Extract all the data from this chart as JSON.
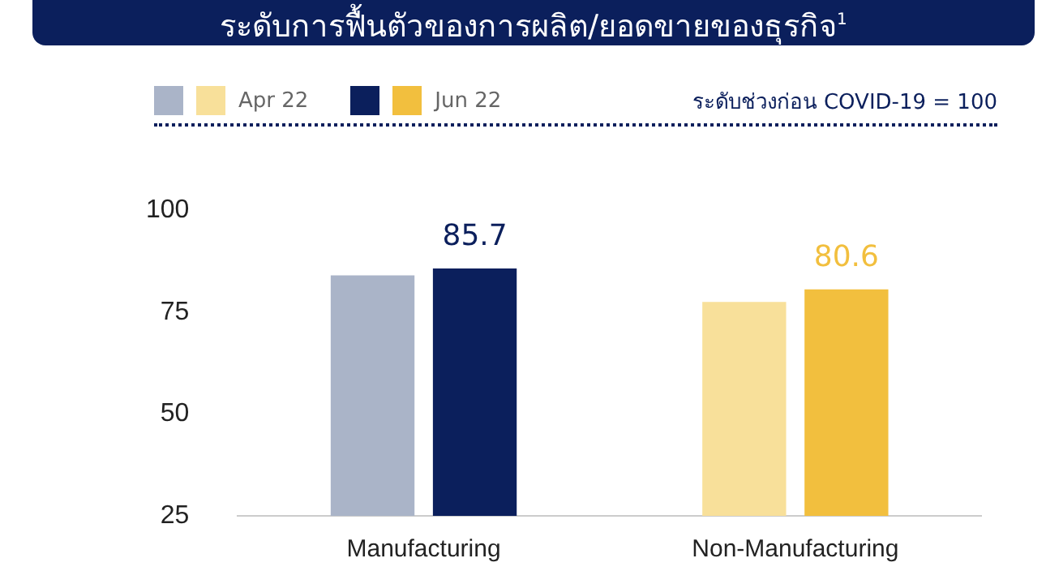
{
  "chart_data": {
    "type": "bar",
    "title": "ระดับการฟื้นตัวของการผลิต/ยอดขายของธุรกิจ$^{1}$",
    "categories": [
      "Manufacturing",
      "Non-Manufacturing"
    ],
    "series": [
      {
        "name": "Apr 22",
        "colors": [
          "#aab4c8",
          "#f8e09a"
        ],
        "values": [
          84.0,
          77.5
        ]
      },
      {
        "name": "Jun 22",
        "colors": [
          "#0b1f5c",
          "#f2bf3e"
        ],
        "values": [
          85.7,
          80.6
        ],
        "value_labels": [
          "85.7",
          "80.6"
        ]
      }
    ],
    "ylim": [
      25,
      100
    ],
    "yticks": [
      25,
      50,
      75,
      100
    ],
    "grid": false,
    "legend": "top",
    "annotations": [
      "ระดับช่วงก่อน COVID-19 = 100"
    ]
  }
}
